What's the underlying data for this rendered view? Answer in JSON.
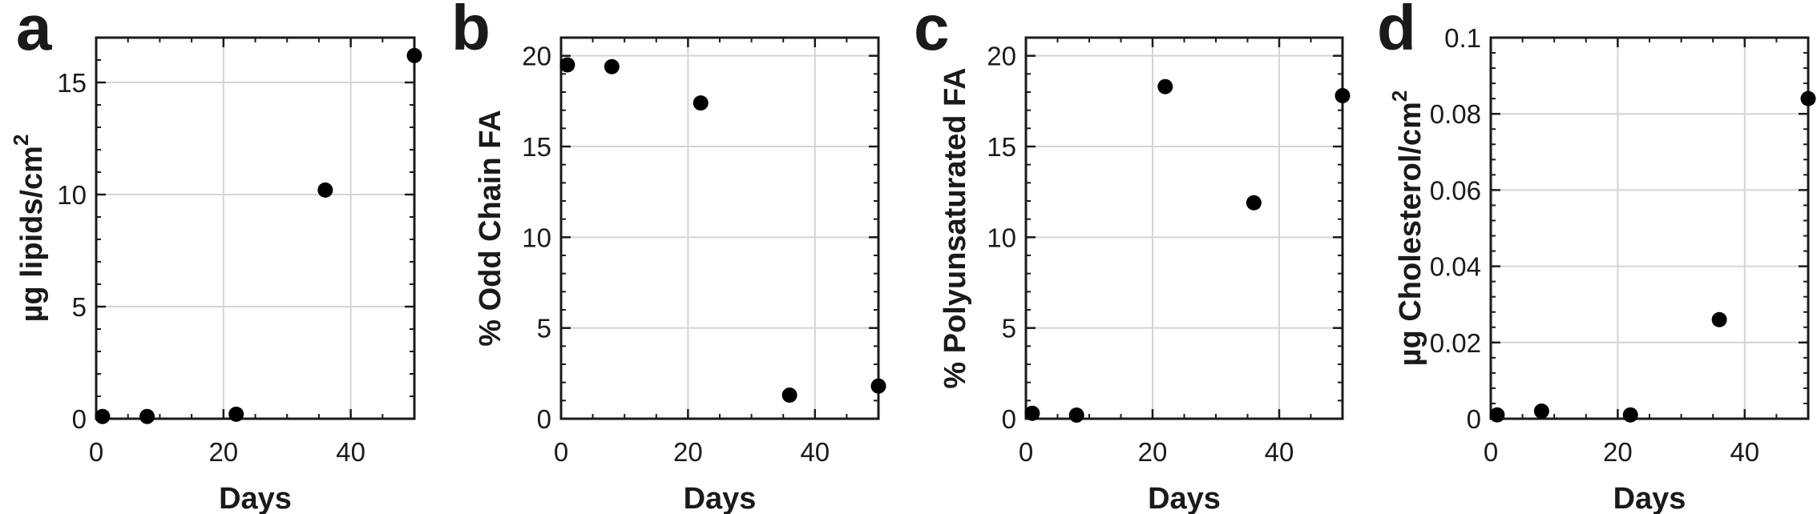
{
  "chart_data": [
    {
      "type": "scatter",
      "panel": "a",
      "xlabel": "Days",
      "ylabel": "µg lipids/cm",
      "ylabel_sup": "2",
      "xlim": [
        0,
        50
      ],
      "ylim": [
        0,
        17
      ],
      "xticks": [
        0,
        20,
        40
      ],
      "xtick_labels": [
        "0",
        "20",
        "40"
      ],
      "yticks": [
        0,
        5,
        10,
        15
      ],
      "ytick_labels": [
        "0",
        "5",
        "10",
        "15"
      ],
      "grid": true,
      "x": [
        1,
        8,
        22,
        36,
        50
      ],
      "y": [
        0.1,
        0.1,
        0.2,
        10.2,
        16.2
      ]
    },
    {
      "type": "scatter",
      "panel": "b",
      "xlabel": "Days",
      "ylabel": "% Odd Chain FA",
      "ylabel_sup": "",
      "xlim": [
        0,
        50
      ],
      "ylim": [
        0,
        21
      ],
      "xticks": [
        0,
        20,
        40
      ],
      "xtick_labels": [
        "0",
        "20",
        "40"
      ],
      "yticks": [
        0,
        5,
        10,
        15,
        20
      ],
      "ytick_labels": [
        "0",
        "5",
        "10",
        "15",
        "20"
      ],
      "grid": true,
      "x": [
        1,
        8,
        22,
        36,
        50
      ],
      "y": [
        19.5,
        19.4,
        17.4,
        1.3,
        1.8
      ]
    },
    {
      "type": "scatter",
      "panel": "c",
      "xlabel": "Days",
      "ylabel": "% Polyunsaturated FA",
      "ylabel_sup": "",
      "xlim": [
        0,
        50
      ],
      "ylim": [
        0,
        21
      ],
      "xticks": [
        0,
        20,
        40
      ],
      "xtick_labels": [
        "0",
        "20",
        "40"
      ],
      "yticks": [
        0,
        5,
        10,
        15,
        20
      ],
      "ytick_labels": [
        "0",
        "5",
        "10",
        "15",
        "20"
      ],
      "grid": true,
      "x": [
        1,
        8,
        22,
        36,
        50
      ],
      "y": [
        0.3,
        0.2,
        18.3,
        11.9,
        17.8
      ]
    },
    {
      "type": "scatter",
      "panel": "d",
      "xlabel": "Days",
      "ylabel": "µg Cholesterol/cm",
      "ylabel_sup": "2",
      "xlim": [
        0,
        50
      ],
      "ylim": [
        0,
        0.1
      ],
      "xticks": [
        0,
        20,
        40
      ],
      "xtick_labels": [
        "0",
        "20",
        "40"
      ],
      "yticks": [
        0,
        0.02,
        0.04,
        0.06,
        0.08,
        0.1
      ],
      "ytick_labels": [
        "0",
        "0.02",
        "0.04",
        "0.06",
        "0.08",
        "0.1"
      ],
      "grid": true,
      "x": [
        1,
        8,
        22,
        36,
        50
      ],
      "y": [
        0.001,
        0.002,
        0.001,
        0.026,
        0.084
      ]
    }
  ],
  "colors": {
    "marker": "#000000",
    "axis": "#1a1a1a",
    "grid": "#d4d4d4"
  }
}
